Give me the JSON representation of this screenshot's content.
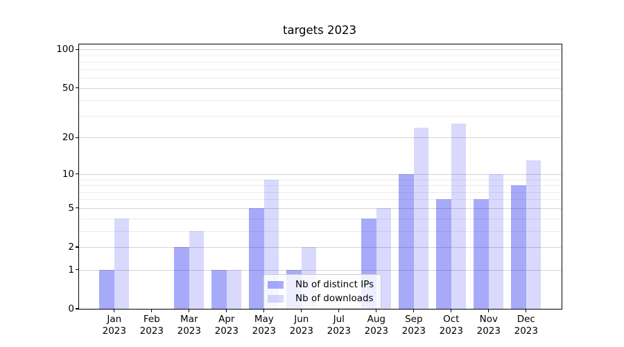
{
  "chart_data": {
    "type": "bar",
    "title": "targets 2023",
    "categories": [
      "Jan",
      "Feb",
      "Mar",
      "Apr",
      "May",
      "Jun",
      "Jul",
      "Aug",
      "Sep",
      "Oct",
      "Nov",
      "Dec"
    ],
    "x_tick_year": "2023",
    "series": [
      {
        "name": "Nb of distinct IPs",
        "color": "rgba(0,8,238,0.345)",
        "values": [
          1,
          0,
          2,
          1,
          5,
          1,
          0,
          4,
          10,
          6,
          6,
          8
        ]
      },
      {
        "name": "Nb of downloads",
        "color": "rgba(0,8,238,0.152)",
        "values": [
          4,
          0,
          3,
          1,
          9,
          2,
          0,
          5,
          24,
          26,
          10,
          13
        ]
      }
    ],
    "y_axis": {
      "scale": "log1p",
      "tick_values": [
        0,
        1,
        2,
        5,
        10,
        20,
        50,
        100
      ],
      "tick_labels": [
        "0",
        "1",
        "2",
        "5",
        "10",
        "20",
        "50",
        "100"
      ],
      "minor_gridline_values": [
        3,
        4,
        6,
        7,
        8,
        9,
        30,
        40,
        60,
        70,
        80,
        90
      ],
      "range": [
        0,
        110
      ]
    },
    "grid": true,
    "legend_position": "lower center"
  },
  "colors": {
    "bar_distinct_ips": "rgba(0,8,238,0.345)",
    "bar_downloads": "rgba(0,8,238,0.152)",
    "grid_major": "#d4d4d4",
    "grid_minor": "#ececec",
    "spine": "#000000",
    "legend_border": "#cccccc",
    "legend_background": "rgba(255,255,255,0.8)"
  }
}
